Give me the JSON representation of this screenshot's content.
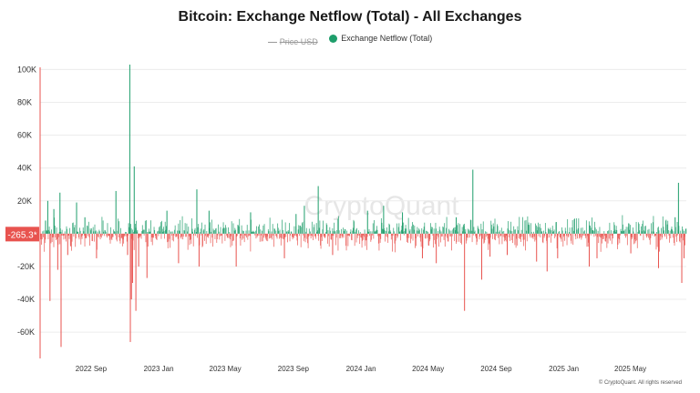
{
  "chart_data": {
    "type": "bar",
    "title": "Bitcoin: Exchange Netflow (Total) - All Exchanges",
    "legend": [
      {
        "name": "Price USD",
        "hidden": true,
        "color": "#999999"
      },
      {
        "name": "Exchange Netflow (Total)",
        "color": "#1e9e6b"
      }
    ],
    "legend_position": "top-center",
    "y_ticks": [
      {
        "value": 100000,
        "label": "100K"
      },
      {
        "value": 80000,
        "label": "80K"
      },
      {
        "value": 60000,
        "label": "60K"
      },
      {
        "value": 40000,
        "label": "40K"
      },
      {
        "value": 20000,
        "label": "20K"
      },
      {
        "value": -20000,
        "label": "-20K"
      },
      {
        "value": -40000,
        "label": "-40K"
      },
      {
        "value": -60000,
        "label": "-60K"
      }
    ],
    "ylim": [
      -76000,
      108000
    ],
    "x_ticks": [
      "2022 Sep",
      "2023 Jan",
      "2023 May",
      "2023 Sep",
      "2024 Jan",
      "2024 May",
      "2024 Sep",
      "2025 Jan",
      "2025 May"
    ],
    "xlim": [
      "2022-06-01",
      "2025-08-10"
    ],
    "grid": true,
    "current_value_label": "-265.3*",
    "positive_color": "#1e9e6b",
    "negative_color": "#e8534f",
    "notable_points": [
      {
        "x": "2022-06-10",
        "y": 8000
      },
      {
        "x": "2022-06-14",
        "y": 20000
      },
      {
        "x": "2022-06-18",
        "y": -41000
      },
      {
        "x": "2022-06-25",
        "y": 15000
      },
      {
        "x": "2022-07-02",
        "y": -22000
      },
      {
        "x": "2022-07-06",
        "y": 25000
      },
      {
        "x": "2022-07-08",
        "y": -69000
      },
      {
        "x": "2022-07-20",
        "y": -13000
      },
      {
        "x": "2022-08-05",
        "y": 19000
      },
      {
        "x": "2022-08-20",
        "y": 10000
      },
      {
        "x": "2022-09-10",
        "y": -15000
      },
      {
        "x": "2022-10-15",
        "y": 26000
      },
      {
        "x": "2022-11-05",
        "y": -13000
      },
      {
        "x": "2022-11-09",
        "y": 103000
      },
      {
        "x": "2022-11-10",
        "y": -66000
      },
      {
        "x": "2022-11-12",
        "y": -40000
      },
      {
        "x": "2022-11-14",
        "y": -30000
      },
      {
        "x": "2022-11-17",
        "y": 41000
      },
      {
        "x": "2022-11-20",
        "y": -47000
      },
      {
        "x": "2022-11-25",
        "y": -20000
      },
      {
        "x": "2022-12-10",
        "y": -27000
      },
      {
        "x": "2023-01-15",
        "y": 14000
      },
      {
        "x": "2023-02-05",
        "y": -18000
      },
      {
        "x": "2023-03-10",
        "y": 27000
      },
      {
        "x": "2023-03-14",
        "y": -20000
      },
      {
        "x": "2023-04-01",
        "y": 14000
      },
      {
        "x": "2023-05-20",
        "y": -20000
      },
      {
        "x": "2023-06-15",
        "y": 13000
      },
      {
        "x": "2023-08-15",
        "y": -15000
      },
      {
        "x": "2023-09-05",
        "y": 12000
      },
      {
        "x": "2023-09-20",
        "y": 17000
      },
      {
        "x": "2023-10-15",
        "y": 29000
      },
      {
        "x": "2023-11-10",
        "y": -13000
      },
      {
        "x": "2024-01-12",
        "y": 14000
      },
      {
        "x": "2024-02-10",
        "y": 17000
      },
      {
        "x": "2024-03-15",
        "y": 13000
      },
      {
        "x": "2024-04-20",
        "y": -15000
      },
      {
        "x": "2024-05-15",
        "y": -18000
      },
      {
        "x": "2024-06-20",
        "y": 10000
      },
      {
        "x": "2024-07-05",
        "y": -47000
      },
      {
        "x": "2024-07-20",
        "y": 39000
      },
      {
        "x": "2024-08-05",
        "y": -28000
      },
      {
        "x": "2024-08-20",
        "y": -14000
      },
      {
        "x": "2024-09-20",
        "y": -13000
      },
      {
        "x": "2024-11-12",
        "y": -17000
      },
      {
        "x": "2024-12-01",
        "y": -23000
      },
      {
        "x": "2024-12-20",
        "y": -15000
      },
      {
        "x": "2025-02-15",
        "y": -20000
      },
      {
        "x": "2025-03-01",
        "y": -15000
      },
      {
        "x": "2025-05-01",
        "y": -12000
      },
      {
        "x": "2025-06-20",
        "y": -21000
      },
      {
        "x": "2025-07-20",
        "y": 10000
      },
      {
        "x": "2025-07-26",
        "y": 31000
      },
      {
        "x": "2025-08-01",
        "y": -30000
      },
      {
        "x": "2025-08-05",
        "y": -15000
      }
    ]
  },
  "footer": "© CryptoQuant. All rights reserved",
  "watermark": "CryptoQuant"
}
